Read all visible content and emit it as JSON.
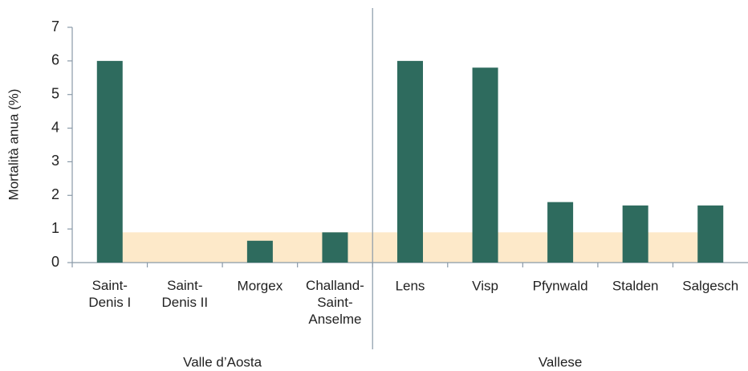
{
  "chart_data": {
    "type": "bar",
    "ylabel": "Mortalità anua (%)",
    "categories": [
      "Saint-\nDenis I",
      "Saint-\nDenis II",
      "Morgex",
      "Challand-\nSaint-\nAnselme",
      "Lens",
      "Visp",
      "Pfynwald",
      "Stalden",
      "Salgesch"
    ],
    "values": [
      6,
      0,
      0.65,
      0.9,
      6,
      5.8,
      1.8,
      1.7,
      1.7
    ],
    "color": "#2e6b5e",
    "band": {
      "from": 0,
      "to": 0.9,
      "color": "#fde9c9"
    },
    "groups": [
      {
        "name": "Valle d’Aosta",
        "count": 4
      },
      {
        "name": "Vallese",
        "count": 5
      }
    ],
    "ylim": [
      0,
      7
    ],
    "yticks": [
      0,
      1,
      2,
      3,
      4,
      5,
      6,
      7
    ],
    "grid": false
  }
}
